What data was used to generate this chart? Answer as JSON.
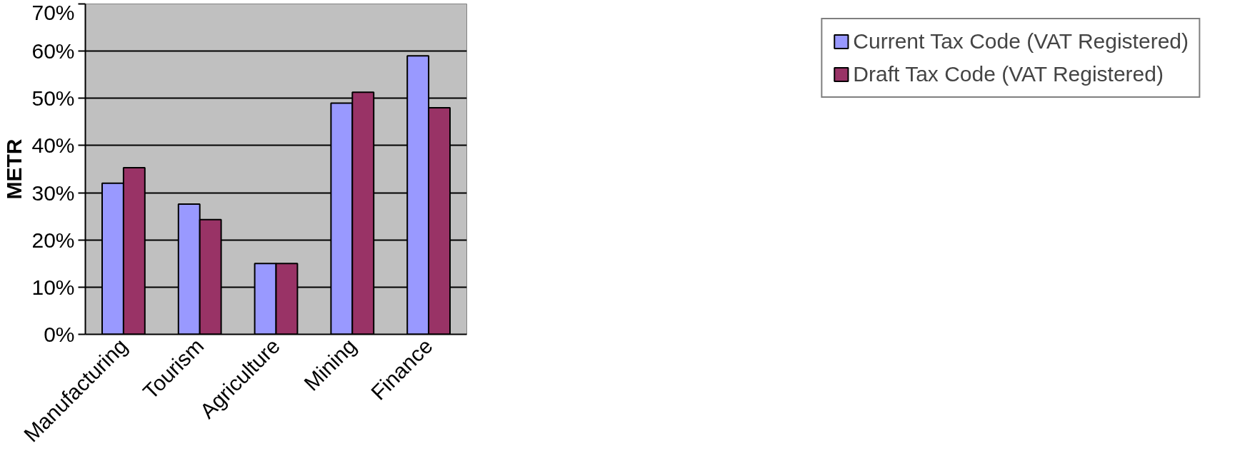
{
  "chart_data": {
    "type": "bar",
    "ylabel": "METR",
    "categories": [
      "Manufacturing",
      "Tourism",
      "Agriculture",
      "Mining",
      "Finance"
    ],
    "series": [
      {
        "name": "Current Tax Code (VAT Registered)",
        "color": "#9999ff",
        "values": [
          0.32,
          0.276,
          0.15,
          0.49,
          0.59
        ]
      },
      {
        "name": "Draft Tax Code (VAT Registered)",
        "color": "#993366",
        "values": [
          0.353,
          0.243,
          0.15,
          0.513,
          0.48
        ]
      }
    ],
    "ylim": [
      0,
      0.7
    ],
    "yticks": [
      {
        "value": 0,
        "label": "0%"
      },
      {
        "value": 0.1,
        "label": "10%"
      },
      {
        "value": 0.2,
        "label": "20%"
      },
      {
        "value": 0.3,
        "label": "30%"
      },
      {
        "value": 0.4,
        "label": "40%"
      },
      {
        "value": 0.5,
        "label": "50%"
      },
      {
        "value": 0.6,
        "label": "60%"
      },
      {
        "value": 0.7,
        "label": "70%"
      }
    ],
    "grid": "y",
    "legend": "right"
  }
}
